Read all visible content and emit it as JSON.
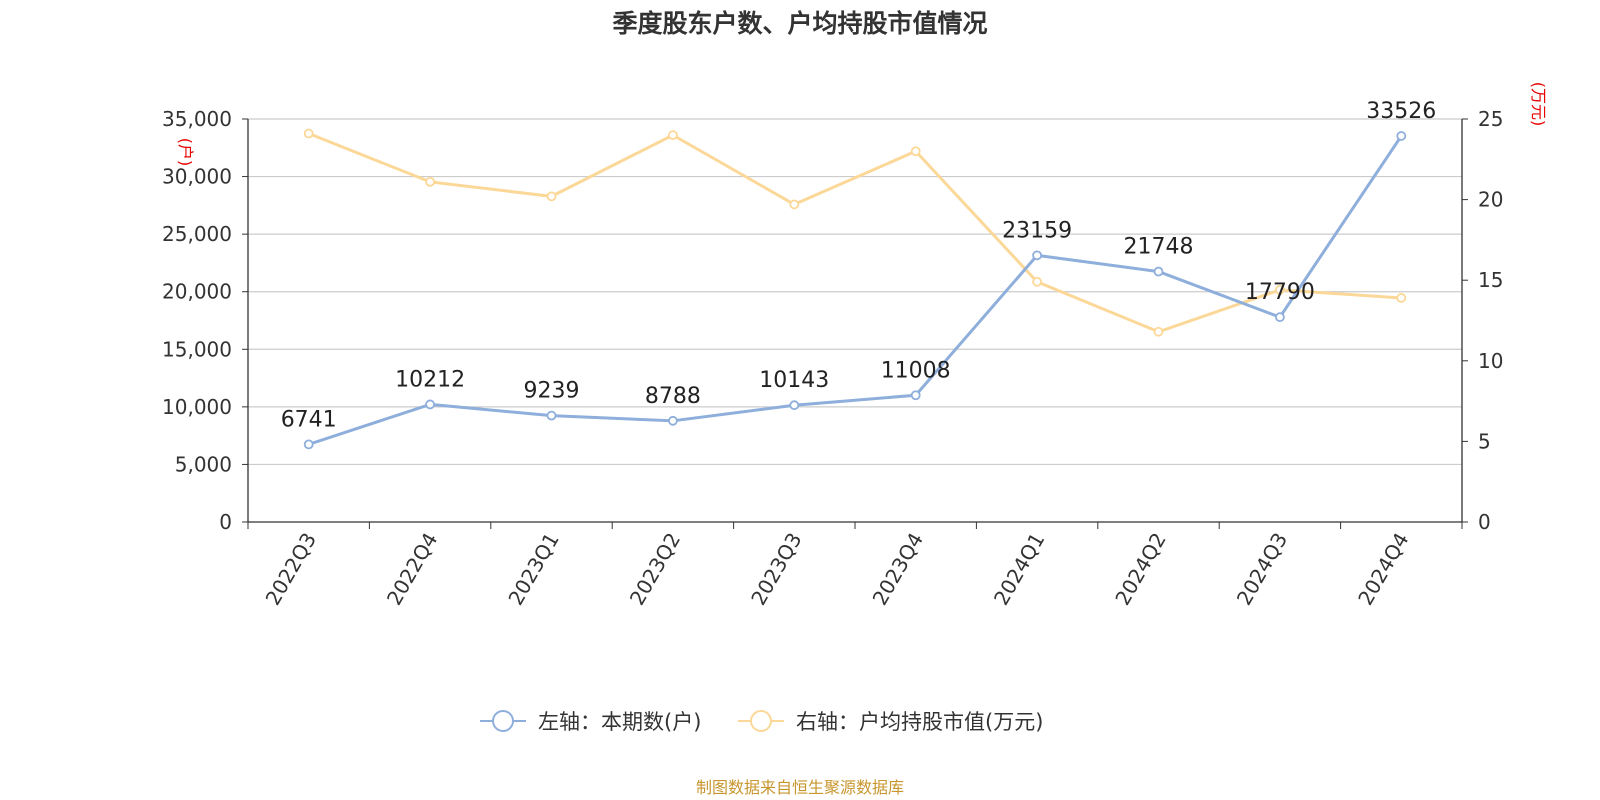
{
  "chart_data": {
    "type": "line",
    "title": "季度股东户数、户均持股市值情况",
    "categories": [
      "2022Q3",
      "2022Q4",
      "2023Q1",
      "2023Q2",
      "2023Q3",
      "2023Q4",
      "2024Q1",
      "2024Q2",
      "2024Q3",
      "2024Q4"
    ],
    "left_axis": {
      "unit": "(户)",
      "ylim": [
        0,
        35000
      ],
      "ticks": [
        "0",
        "5,000",
        "10,000",
        "15,000",
        "20,000",
        "25,000",
        "30,000",
        "35,000"
      ]
    },
    "right_axis": {
      "unit": "(万元)",
      "ylim": [
        0,
        25
      ],
      "ticks": [
        "0",
        "5",
        "10",
        "15",
        "20",
        "25"
      ]
    },
    "series": [
      {
        "name": "左轴：本期数(户)",
        "axis": "left",
        "color": "#8eaedb",
        "values": [
          6741,
          10212,
          9239,
          8788,
          10143,
          11008,
          23159,
          21748,
          17790,
          33526
        ],
        "labels": [
          "6741",
          "10212",
          "9239",
          "8788",
          "10143",
          "11008",
          "23159",
          "21748",
          "17790",
          "33526"
        ]
      },
      {
        "name": "右轴：户均持股市值(万元)",
        "axis": "right",
        "color": "#fbd898",
        "values": [
          24.1,
          21.1,
          20.2,
          24.0,
          19.7,
          23.0,
          14.9,
          11.8,
          14.4,
          13.9
        ]
      }
    ],
    "grid": true,
    "legend_position": "bottom"
  },
  "source": "制图数据来自恒生聚源数据库"
}
